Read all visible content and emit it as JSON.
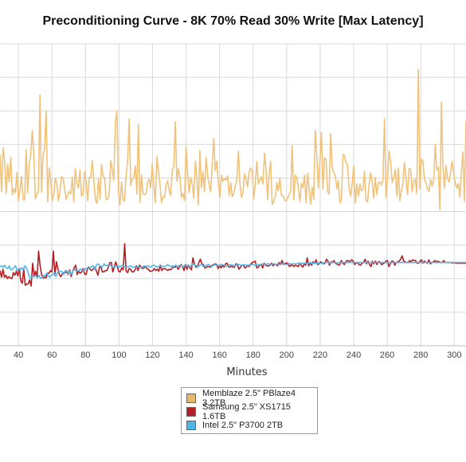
{
  "chart_data": {
    "type": "line",
    "title": "Preconditioning Curve - 8K 70% Read 30% Write [Max Latency]",
    "xlabel": "Minutes",
    "ylabel": "",
    "xlim": [
      29,
      307
    ],
    "ylim": [
      0,
      45
    ],
    "xticks": [
      40,
      60,
      80,
      100,
      120,
      140,
      160,
      180,
      200,
      220,
      240,
      260,
      280,
      300
    ],
    "grid": true,
    "legend_position": "bottom-center",
    "series": [
      {
        "name": "Memblaze 2.5\" PBlaze4 3.2TB",
        "color": "#f0c27a",
        "swatch": "#e8b86a",
        "values": [
          28.5,
          23.0,
          29.5,
          27.6,
          22.7,
          27.1,
          24.4,
          28.1,
          22.5,
          23.4,
          22.8,
          25.8,
          21.6,
          23.3,
          25.2,
          21.9,
          21.7,
          29.2,
          22.8,
          27.1,
          28.6,
          32.1,
          28.5,
          21.9,
          22.6,
          23.0,
          37.4,
          22.9,
          28.4,
          29.5,
          35.0,
          21.5,
          26.5,
          24.6,
          21.6,
          22.6,
          25.0,
          24.1,
          21.6,
          23.1,
          25.2,
          25.0,
          23.4,
          21.8,
          22.4,
          23.0,
          22.6,
          25.1,
          21.4,
          26.4,
          24.2,
          23.5,
          26.2,
          22.3,
          22.5,
          26.0,
          24.4,
          21.6,
          25.1,
          25.0,
          27.6,
          24.8,
          21.8,
          21.2,
          24.9,
          21.8,
          27.0,
          25.3,
          25.0,
          21.8,
          21.8,
          22.5,
          27.6,
          26.3,
          24.6,
          33.3,
          35.0,
          23.1,
          21.0,
          24.4,
          21.7,
          21.6,
          25.4,
          27.8,
          33.8,
          23.9,
          24.9,
          25.0,
          26.8,
          22.6,
          33.0,
          21.3,
          25.4,
          22.7,
          22.5,
          22.7,
          24.4,
          24.8,
          23.5,
          27.1,
          23.9,
          21.3,
          28.2,
          26.2,
          24.1,
          21.3,
          22.2,
          22.1,
          24.0,
          24.6,
          23.2,
          22.4,
          26.2,
          26.7,
          33.4,
          24.5,
          26.4,
          25.1,
          22.1,
          22.7,
          21.6,
          29.7,
          25.7,
          22.8,
          25.1,
          24.1,
          22.0,
          27.5,
          25.1,
          21.0,
          29.1,
          23.6,
          25.9,
          23.0,
          28.1,
          25.4,
          24.0,
          22.9,
          27.0,
          30.9,
          26.1,
          27.5,
          24.2,
          22.1,
          25.4,
          24.5,
          24.9,
          24.7,
          25.3,
          22.4,
          24.3,
          22.2,
          22.7,
          23.8,
          24.8,
          29.0,
          24.2,
          22.1,
          22.9,
          25.6,
          24.9,
          23.7,
          25.9,
          26.5,
          26.0,
          21.9,
          24.1,
          27.5,
          24.1,
          24.7,
          25.2,
          24.1,
          28.7,
          26.3,
          21.8,
          25.6,
          27.5,
          21.0,
          21.6,
          22.2,
          24.3,
          23.1,
          25.0,
          22.4,
          22.4,
          21.7,
          21.6,
          22.0,
          22.5,
          23.1,
          29.8,
          21.7,
          25.4,
          25.1,
          23.5,
          21.5,
          24.2,
          23.6,
          25.4,
          21.3,
          25.7,
          23.3,
          21.1,
          23.6,
          21.8,
          32.1,
          28.3,
          23.5,
          27.5,
          31.8,
          23.3,
          28.0,
          27.8,
          23.0,
          22.6,
          31.6,
          26.6,
          25.8,
          25.4,
          23.4,
          24.6,
          21.3,
          21.7,
          28.5,
          28.3,
          27.2,
          27.0,
          23.4,
          22.3,
          24.1,
          26.8,
          21.3,
          24.1,
          22.3,
          24.1,
          23.1,
          23.3,
          26.0,
          21.7,
          21.4,
          24.1,
          25.8,
          24.4,
          22.0,
          25.1,
          22.5,
          24.3,
          24.4,
          24.0,
          24.6,
          33.8,
          22.1,
          25.0,
          29.0,
          27.4,
          24.3,
          25.1,
          26.3,
          22.3,
          26.5,
          21.6,
          23.1,
          24.3,
          27.3,
          24.9,
          22.5,
          26.4,
          26.3,
          22.9,
          24.6,
          24.8,
          22.7,
          41.2,
          23.4,
          27.8,
          27.5,
          24.8,
          24.3,
          23.4,
          23.0,
          24.8,
          23.8,
          24.7,
          30.0,
          26.2,
          26.6,
          20.3,
          36.3,
          26.5,
          23.5,
          26.9,
          24.9,
          24.4,
          25.9,
          27.5,
          25.8,
          24.2,
          23.5,
          24.2,
          22.2,
          25.9,
          28.9,
          21.5,
          33.5
        ]
      },
      {
        "name": "Samsung 2.5\" XS1715 1.6TB",
        "color": "#b41f24",
        "swatch": "#b41f24",
        "values": [
          11.2,
          10.2,
          11.4,
          10.2,
          10.5,
          10.0,
          10.3,
          10.1,
          10.0,
          10.9,
          10.5,
          11.1,
          10.4,
          11.5,
          9.7,
          9.3,
          11.4,
          9.0,
          9.2,
          9.2,
          9.8,
          8.9,
          12.3,
          10.4,
          11.1,
          10.1,
          14.1,
          12.0,
          10.6,
          10.1,
          10.2,
          10.1,
          10.8,
          10.8,
          11.2,
          11.0,
          14.1,
          10.5,
          12.5,
          11.5,
          10.6,
          10.3,
          10.7,
          10.9,
          10.9,
          11.0,
          10.6,
          11.3,
          10.3,
          11.1,
          11.6,
          12.0,
          10.6,
          11.1,
          10.8,
          11.0,
          11.5,
          10.7,
          10.6,
          11.6,
          11.7,
          11.3,
          11.2,
          11.5,
          11.7,
          11.1,
          10.5,
          11.7,
          11.8,
          11.0,
          11.0,
          11.2,
          11.2,
          11.7,
          12.4,
          12.4,
          11.0,
          11.7,
          12.5,
          11.8,
          11.1,
          11.0,
          11.6,
          11.3,
          15.2,
          11.1,
          10.9,
          11.5,
          11.4,
          11.0,
          11.0,
          11.3,
          11.9,
          11.2,
          12.0,
          11.7,
          11.5,
          11.6,
          11.8,
          11.5,
          11.4,
          11.1,
          11.1,
          11.2,
          11.5,
          11.2,
          11.4,
          11.1,
          12.0,
          11.2,
          11.5,
          11.5,
          11.4,
          11.2,
          11.4,
          11.3,
          11.6,
          11.7,
          11.7,
          11.9,
          11.4,
          11.7,
          12.1,
          11.8,
          11.2,
          12.1,
          11.4,
          12.0,
          11.6,
          11.3,
          13.1,
          12.2,
          11.7,
          11.7,
          12.4,
          12.9,
          12.2,
          12.1,
          11.6,
          11.7,
          11.8,
          11.8,
          11.7,
          12.0,
          12.1,
          12.2,
          12.1,
          11.5,
          12.0,
          11.6,
          12.0,
          11.7,
          12.2,
          12.3,
          11.8,
          11.7,
          11.9,
          11.7,
          11.7,
          12.2,
          12.1,
          11.4,
          11.7,
          12.0,
          12.0,
          11.6,
          11.7,
          12.0,
          11.8,
          12.2,
          12.4,
          12.5,
          12.6,
          11.6,
          11.7,
          12.0,
          12.1,
          11.6,
          12.3,
          12.0,
          11.9,
          11.9,
          12.0,
          12.3,
          11.9,
          12.2,
          12.1,
          11.9,
          12.4,
          12.1,
          12.7,
          12.1,
          12.3,
          12.3,
          12.3,
          11.8,
          12.0,
          12.0,
          11.8,
          12.0,
          11.9,
          11.8,
          12.3,
          12.0,
          11.7,
          12.2,
          12.0,
          13.1,
          11.9,
          12.4,
          12.0,
          12.5,
          12.3,
          12.8,
          12.1,
          12.2,
          12.5,
          12.4,
          12.2,
          12.3,
          12.9,
          12.6,
          12.0,
          12.5,
          12.4,
          12.7,
          12.3,
          12.2,
          12.0,
          12.1,
          12.7,
          12.3,
          12.1,
          12.5,
          12.7,
          12.6,
          12.6,
          12.8,
          12.6,
          12.1,
          12.4,
          12.3,
          12.1,
          12.0,
          12.3,
          12.4,
          12.9,
          12.2,
          12.6,
          12.1,
          11.8,
          12.6,
          12.2,
          12.6,
          12.1,
          12.5,
          12.5,
          12.1,
          12.2,
          12.3,
          12.6,
          12.7,
          11.8,
          12.2,
          12.6,
          12.6,
          12.0,
          12.4,
          12.5,
          12.6,
          12.9,
          13.4,
          12.6,
          12.5,
          12.4,
          12.4,
          12.7,
          12.5,
          12.8,
          12.7,
          12.7,
          12.3,
          12.3,
          12.6,
          12.8,
          12.3,
          12.6,
          12.4,
          12.3,
          12.8,
          12.2,
          12.4,
          12.5,
          12.7,
          12.5,
          12.6,
          12.5,
          12.4,
          12.4,
          12.7,
          12.4,
          12.4,
          12.4,
          12.4,
          12.4,
          12.3,
          12.4,
          12.3,
          12.3,
          12.3,
          12.3,
          12.3,
          12.3,
          12.3,
          12.3
        ]
      },
      {
        "name": "Intel 2.5\" P3700 2TB",
        "color": "#4fb6e8",
        "swatch": "#4fb6e8",
        "values": [
          11.8,
          11.9,
          11.7,
          12.0,
          11.6,
          11.5,
          11.9,
          11.3,
          11.4,
          11.7,
          11.9,
          11.2,
          11.4,
          11.3,
          11.6,
          11.4,
          11.9,
          11.6,
          11.0,
          10.2,
          10.1,
          10.3,
          10.3,
          10.5,
          10.1,
          10.5,
          10.1,
          10.1,
          10.5,
          10.4,
          10.8,
          10.5,
          10.2,
          10.5,
          10.6,
          10.9,
          10.3,
          10.9,
          11.1,
          11.1,
          11.0,
          10.6,
          11.2,
          11.2,
          10.7,
          11.1,
          10.6,
          11.2,
          11.3,
          11.2,
          11.1,
          11.3,
          11.4,
          11.3,
          11.2,
          11.5,
          11.5,
          11.5,
          11.7,
          11.8,
          11.9,
          11.4,
          12.0,
          12.2,
          12.0,
          11.8,
          11.8,
          12.2,
          11.9,
          12.0,
          11.9,
          12.0,
          11.8,
          11.7,
          11.8,
          11.8,
          11.9,
          11.7,
          11.9,
          12.0,
          11.8,
          11.7,
          11.8,
          11.8,
          11.9,
          11.7,
          11.7,
          11.8,
          11.7,
          11.8,
          11.7,
          11.6,
          11.8,
          11.9,
          11.8,
          11.9,
          11.8,
          11.7,
          11.9,
          12.0,
          11.9,
          11.7,
          11.8,
          11.9,
          11.9,
          11.8,
          11.8,
          11.9,
          12.1,
          11.9,
          11.8,
          11.9,
          11.8,
          12.0,
          11.8,
          11.9,
          12.0,
          11.9,
          11.8,
          12.0,
          11.9,
          12.0,
          11.8,
          11.9,
          12.2,
          12.1,
          12.0,
          11.7,
          11.9,
          12.0,
          12.1,
          11.8,
          11.9,
          12.0,
          12.1,
          12.0,
          11.8,
          11.9,
          12.1,
          12.0,
          12.0,
          11.9,
          12.1,
          12.1,
          12.0,
          11.9,
          11.9,
          11.9,
          12.1,
          12.0,
          12.0,
          11.9,
          12.0,
          12.1,
          12.1,
          12.0,
          12.0,
          12.1,
          12.0,
          12.0,
          12.0,
          12.0,
          12.1,
          12.1,
          12.0,
          12.1,
          12.0,
          12.1,
          12.1,
          12.2,
          12.2,
          12.1,
          12.2,
          12.2,
          12.1,
          12.1,
          12.2,
          12.2,
          12.1,
          12.2,
          12.1,
          12.2,
          12.2,
          12.2,
          12.1,
          12.1,
          12.2,
          12.2,
          12.2,
          12.2,
          12.2,
          12.2,
          12.3,
          12.2,
          12.3,
          12.3,
          12.3,
          12.2,
          12.3,
          12.3,
          12.3,
          12.3,
          12.3,
          12.3,
          12.3,
          12.3,
          12.3,
          12.3,
          12.3,
          12.4,
          12.4,
          12.4,
          12.3,
          12.4,
          12.4,
          12.4,
          12.4,
          12.3,
          12.4,
          12.4,
          12.4,
          12.4,
          12.4,
          12.4,
          12.4,
          12.4,
          12.4,
          12.4,
          12.4,
          12.4,
          12.4,
          12.4,
          12.4,
          12.4,
          12.4,
          12.4,
          12.4,
          12.4,
          12.4,
          12.4,
          12.4,
          12.4,
          12.4,
          12.4,
          12.4,
          12.4,
          12.4,
          12.4,
          12.4,
          12.4,
          12.4,
          12.4,
          12.4,
          12.4,
          12.4,
          12.4,
          12.4,
          12.4,
          12.4,
          12.4,
          12.4,
          12.4,
          12.4,
          12.4,
          12.4,
          12.4,
          12.4,
          12.4,
          12.4,
          12.4,
          12.4,
          12.4,
          12.4,
          12.4,
          12.4,
          12.4,
          12.4,
          12.4,
          12.4,
          12.4,
          12.4,
          12.4,
          12.4,
          12.4,
          12.4,
          12.4,
          12.4,
          12.4,
          12.4,
          12.4,
          12.4,
          12.4,
          12.4,
          12.4,
          12.4,
          12.4,
          12.4,
          12.4,
          12.4,
          12.4,
          12.4
        ]
      }
    ]
  }
}
